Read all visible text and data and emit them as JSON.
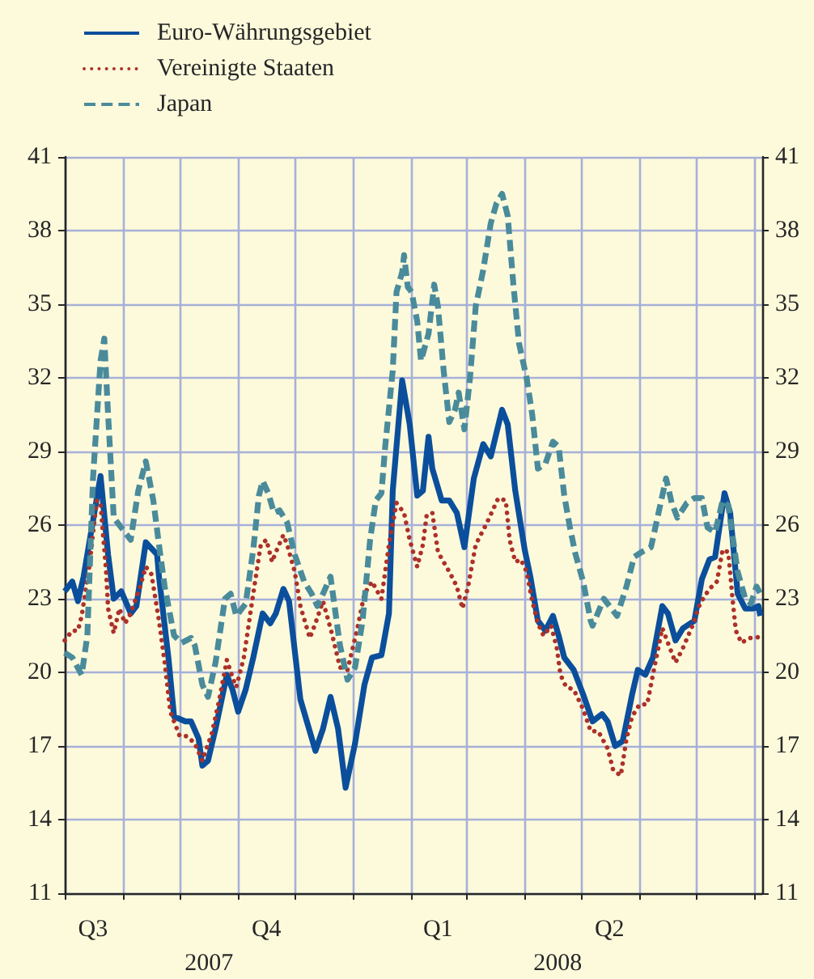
{
  "chart_data": {
    "type": "line",
    "legend": "top left",
    "grid": true,
    "marker": "none",
    "xlim": [
      "2007-08-01",
      "2008-08-05"
    ],
    "xticks": [
      {
        "value": "2007-08-01",
        "label": null
      },
      {
        "value": "2007-09-01",
        "label": null
      },
      {
        "value": "2007-10-01",
        "label": null
      },
      {
        "value": "2007-11-01",
        "label": null
      },
      {
        "value": "2007-12-01",
        "label": null
      },
      {
        "value": "2008-01-01",
        "label": null
      },
      {
        "value": "2008-02-01",
        "label": null
      },
      {
        "value": "2008-03-01",
        "label": null
      },
      {
        "value": "2008-04-01",
        "label": null
      },
      {
        "value": "2008-05-01",
        "label": null
      },
      {
        "value": "2008-06-01",
        "label": null
      },
      {
        "value": "2008-07-01",
        "label": null
      },
      {
        "value": "2008-08-01",
        "label": null
      },
      {
        "value": "2007-08-16",
        "label": "Q3"
      },
      {
        "value": "2007-11-16",
        "label": "Q4"
      },
      {
        "value": "2008-02-15",
        "label": "Q1"
      },
      {
        "value": "2008-05-16",
        "label": "Q2"
      }
    ],
    "ylim": [
      11,
      41
    ],
    "yticks": [
      11,
      14,
      17,
      20,
      23,
      26,
      29,
      32,
      35,
      38,
      41
    ],
    "y2lim": [
      11,
      41
    ],
    "y2ticks": [
      11,
      14,
      17,
      20,
      23,
      26,
      29,
      32,
      35,
      38,
      41
    ],
    "annotations": [
      "2007",
      "2008"
    ],
    "series": [
      {
        "name": "Euro-Währungsgebiet",
        "color": "#0b4f9c",
        "line_style": "solid",
        "x": [
          "2007-08-01",
          "2007-08-05",
          "2007-08-08",
          "2007-08-11",
          "2007-08-20",
          "2007-08-24",
          "2007-08-27",
          "2007-08-31",
          "2007-09-05",
          "2007-09-08",
          "2007-09-13",
          "2007-09-19",
          "2007-09-20",
          "2007-09-25",
          "2007-09-28",
          "2007-10-04",
          "2007-10-07",
          "2007-10-11",
          "2007-10-13",
          "2007-10-16",
          "2007-10-20",
          "2007-10-26",
          "2007-10-29",
          "2007-11-01",
          "2007-11-05",
          "2007-11-09",
          "2007-11-14",
          "2007-11-18",
          "2007-11-21",
          "2007-11-25",
          "2007-11-28",
          "2007-12-04",
          "2007-12-12",
          "2007-12-16",
          "2007-12-20",
          "2007-12-24",
          "2007-12-28",
          "2008-01-02",
          "2008-01-07",
          "2008-01-11",
          "2008-01-16",
          "2008-01-20",
          "2008-01-22",
          "2008-01-27",
          "2008-01-31",
          "2008-02-04",
          "2008-02-07",
          "2008-02-10",
          "2008-02-12",
          "2008-02-17",
          "2008-02-21",
          "2008-02-25",
          "2008-02-29",
          "2008-03-05",
          "2008-03-10",
          "2008-03-14",
          "2008-03-20",
          "2008-03-23",
          "2008-03-27",
          "2008-04-01",
          "2008-04-04",
          "2008-04-08",
          "2008-04-12",
          "2008-04-16",
          "2008-04-19",
          "2008-04-22",
          "2008-04-27",
          "2008-05-02",
          "2008-05-07",
          "2008-05-12",
          "2008-05-15",
          "2008-05-19",
          "2008-05-23",
          "2008-05-28",
          "2008-05-31",
          "2008-06-04",
          "2008-06-08",
          "2008-06-13",
          "2008-06-16",
          "2008-06-20",
          "2008-06-24",
          "2008-06-30",
          "2008-07-04",
          "2008-07-08",
          "2008-07-11",
          "2008-07-16",
          "2008-07-19",
          "2008-07-23",
          "2008-07-27",
          "2008-07-31",
          "2008-08-03",
          "2008-08-04"
        ],
        "values": [
          23.3,
          23.7,
          22.9,
          23.9,
          28.0,
          24.8,
          23.0,
          23.3,
          22.4,
          22.7,
          25.3,
          24.8,
          23.9,
          20.6,
          18.2,
          18.0,
          18.0,
          17.3,
          16.2,
          16.4,
          17.7,
          19.9,
          19.3,
          18.4,
          19.3,
          20.6,
          22.4,
          22.0,
          22.4,
          23.4,
          22.9,
          18.9,
          16.8,
          17.7,
          19.0,
          17.7,
          15.3,
          17.1,
          19.5,
          20.6,
          20.7,
          22.4,
          27.4,
          31.9,
          30.1,
          27.2,
          27.4,
          29.6,
          28.3,
          27.0,
          27.0,
          26.5,
          25.1,
          27.9,
          29.3,
          28.8,
          30.7,
          30.1,
          27.4,
          25.0,
          23.9,
          22.1,
          21.7,
          22.3,
          21.5,
          20.6,
          20.1,
          19.1,
          18.0,
          18.3,
          18.0,
          17.0,
          17.2,
          19.1,
          20.1,
          19.9,
          20.6,
          22.7,
          22.4,
          21.3,
          21.8,
          22.1,
          23.8,
          24.6,
          24.7,
          27.3,
          26.5,
          23.2,
          22.6,
          22.6,
          22.7,
          22.3
        ]
      },
      {
        "name": "Vereinigte Staaten",
        "color": "#ad3129",
        "line_style": "dotted",
        "x": [
          "2007-08-01",
          "2007-08-05",
          "2007-08-08",
          "2007-08-10",
          "2007-08-14",
          "2007-08-18",
          "2007-08-20",
          "2007-08-21",
          "2007-08-23",
          "2007-08-24",
          "2007-08-27",
          "2007-08-30",
          "2007-09-02",
          "2007-09-05",
          "2007-09-10",
          "2007-09-13",
          "2007-09-16",
          "2007-09-20",
          "2007-09-23",
          "2007-09-26",
          "2007-10-01",
          "2007-10-05",
          "2007-10-09",
          "2007-10-13",
          "2007-10-18",
          "2007-10-22",
          "2007-10-26",
          "2007-10-29",
          "2007-10-31",
          "2007-11-04",
          "2007-11-09",
          "2007-11-13",
          "2007-11-16",
          "2007-11-19",
          "2007-11-21",
          "2007-11-25",
          "2007-11-27",
          "2007-12-01",
          "2007-12-04",
          "2007-12-09",
          "2007-12-12",
          "2007-12-16",
          "2007-12-21",
          "2007-12-25",
          "2007-12-29",
          "2008-01-03",
          "2008-01-07",
          "2008-01-11",
          "2008-01-16",
          "2008-01-20",
          "2008-01-24",
          "2008-01-28",
          "2008-01-31",
          "2008-02-04",
          "2008-02-07",
          "2008-02-09",
          "2008-02-12",
          "2008-02-15",
          "2008-02-21",
          "2008-02-25",
          "2008-02-28",
          "2008-03-02",
          "2008-03-06",
          "2008-03-12",
          "2008-03-18",
          "2008-03-22",
          "2008-03-24",
          "2008-03-27",
          "2008-03-30",
          "2008-04-02",
          "2008-04-05",
          "2008-04-08",
          "2008-04-11",
          "2008-04-15",
          "2008-04-18",
          "2008-04-20",
          "2008-04-23",
          "2008-04-27",
          "2008-05-02",
          "2008-05-06",
          "2008-05-10",
          "2008-05-15",
          "2008-05-18",
          "2008-05-22",
          "2008-05-25",
          "2008-05-28",
          "2008-06-01",
          "2008-06-05",
          "2008-06-08",
          "2008-06-13",
          "2008-06-17",
          "2008-06-20",
          "2008-06-24",
          "2008-06-29",
          "2008-07-03",
          "2008-07-08",
          "2008-07-12",
          "2008-07-15",
          "2008-07-18",
          "2008-07-20",
          "2008-07-22",
          "2008-07-25",
          "2008-07-29",
          "2008-08-02",
          "2008-08-04"
        ],
        "values": [
          21.3,
          21.7,
          21.7,
          22.3,
          24.3,
          27.0,
          26.9,
          25.9,
          24.1,
          22.6,
          21.6,
          22.6,
          22.0,
          22.4,
          23.5,
          24.3,
          24.0,
          22.1,
          20.4,
          18.4,
          17.4,
          17.4,
          17.1,
          16.4,
          17.5,
          18.9,
          20.5,
          19.8,
          19.4,
          20.6,
          23.2,
          25.2,
          25.4,
          24.5,
          24.9,
          25.6,
          25.2,
          24.1,
          22.7,
          21.4,
          22.0,
          22.9,
          21.5,
          20.2,
          20.1,
          21.7,
          23.2,
          23.7,
          23.0,
          25.2,
          26.9,
          26.5,
          25.4,
          24.3,
          25.2,
          26.4,
          26.5,
          24.9,
          24.1,
          23.5,
          22.6,
          23.5,
          25.2,
          26.1,
          27.1,
          27.0,
          25.4,
          24.5,
          24.6,
          24.1,
          22.9,
          22.0,
          21.5,
          21.9,
          21.0,
          19.9,
          19.4,
          19.3,
          18.5,
          17.6,
          17.6,
          16.9,
          16.0,
          15.8,
          17.3,
          18.2,
          18.7,
          18.7,
          19.9,
          21.8,
          21.0,
          20.4,
          21.0,
          21.9,
          22.8,
          23.4,
          23.7,
          25.0,
          24.9,
          23.2,
          21.7,
          21.2,
          21.4,
          21.4,
          21.5
        ]
      },
      {
        "name": "Japan",
        "color": "#4a8b9b",
        "line_style": "dashed",
        "x": [
          "2007-08-01",
          "2007-08-05",
          "2007-08-10",
          "2007-08-13",
          "2007-08-16",
          "2007-08-20",
          "2007-08-22",
          "2007-08-24",
          "2007-08-27",
          "2007-08-31",
          "2007-09-05",
          "2007-09-09",
          "2007-09-13",
          "2007-09-17",
          "2007-09-20",
          "2007-09-23",
          "2007-09-28",
          "2007-10-02",
          "2007-10-07",
          "2007-10-09",
          "2007-10-13",
          "2007-10-16",
          "2007-10-20",
          "2007-10-25",
          "2007-10-28",
          "2007-10-31",
          "2007-11-05",
          "2007-11-09",
          "2007-11-12",
          "2007-11-14",
          "2007-11-17",
          "2007-11-20",
          "2007-11-23",
          "2007-11-27",
          "2007-12-01",
          "2007-12-06",
          "2007-12-10",
          "2007-12-13",
          "2007-12-16",
          "2007-12-20",
          "2007-12-25",
          "2007-12-29",
          "2008-01-02",
          "2008-01-06",
          "2008-01-10",
          "2008-01-13",
          "2008-01-16",
          "2008-01-18",
          "2008-01-22",
          "2008-01-24",
          "2008-01-27",
          "2008-01-28",
          "2008-01-30",
          "2008-02-01",
          "2008-02-04",
          "2008-02-06",
          "2008-02-10",
          "2008-02-13",
          "2008-02-15",
          "2008-02-18",
          "2008-02-21",
          "2008-02-24",
          "2008-02-26",
          "2008-02-29",
          "2008-03-03",
          "2008-03-06",
          "2008-03-10",
          "2008-03-14",
          "2008-03-17",
          "2008-03-20",
          "2008-03-23",
          "2008-03-26",
          "2008-03-29",
          "2008-04-02",
          "2008-04-05",
          "2008-04-08",
          "2008-04-12",
          "2008-04-16",
          "2008-04-19",
          "2008-04-22",
          "2008-04-25",
          "2008-04-28",
          "2008-05-02",
          "2008-05-06",
          "2008-05-07",
          "2008-05-13",
          "2008-05-18",
          "2008-05-20",
          "2008-05-25",
          "2008-05-29",
          "2008-06-02",
          "2008-06-07",
          "2008-06-11",
          "2008-06-15",
          "2008-06-18",
          "2008-06-21",
          "2008-06-26",
          "2008-06-30",
          "2008-07-04",
          "2008-07-07",
          "2008-07-11",
          "2008-07-15",
          "2008-07-18",
          "2008-07-20",
          "2008-07-23",
          "2008-07-27",
          "2008-07-30",
          "2008-08-02",
          "2008-08-04"
        ],
        "values": [
          20.8,
          20.6,
          19.9,
          21.5,
          27.9,
          32.7,
          33.6,
          30.5,
          26.3,
          25.9,
          25.4,
          27.4,
          28.6,
          27.0,
          25.2,
          23.5,
          21.5,
          21.2,
          21.4,
          21.1,
          19.5,
          19.0,
          20.4,
          23.0,
          23.2,
          22.3,
          22.8,
          25.0,
          27.2,
          27.8,
          27.3,
          26.5,
          26.6,
          26.1,
          24.8,
          23.7,
          23.2,
          22.7,
          23.2,
          23.9,
          21.1,
          19.7,
          20.2,
          22.1,
          25.4,
          27.0,
          27.3,
          29.2,
          32.3,
          35.5,
          36.3,
          37.0,
          35.7,
          35.5,
          34.3,
          32.7,
          33.8,
          35.8,
          34.9,
          32.3,
          30.2,
          30.7,
          31.4,
          29.9,
          32.0,
          34.9,
          36.4,
          38.3,
          39.1,
          39.5,
          38.6,
          35.8,
          33.4,
          32.0,
          30.5,
          28.3,
          28.5,
          29.4,
          29.2,
          27.2,
          25.9,
          24.8,
          23.7,
          22.1,
          21.9,
          23.0,
          22.5,
          22.3,
          23.5,
          24.7,
          24.9,
          25.1,
          26.5,
          27.9,
          26.9,
          26.3,
          26.9,
          27.1,
          27.1,
          25.9,
          25.7,
          27.0,
          26.8,
          25.7,
          24.1,
          23.0,
          22.8,
          23.5,
          23.2
        ]
      }
    ]
  }
}
